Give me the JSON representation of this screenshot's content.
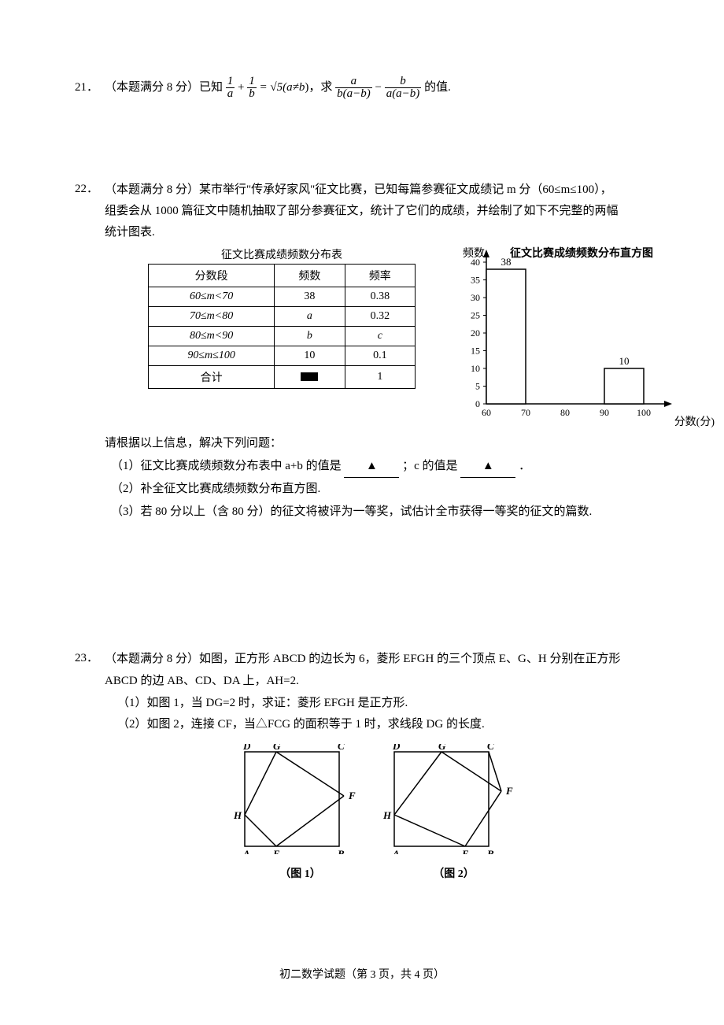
{
  "problems": {
    "p21": {
      "number": "21．",
      "points_prefix": "（本题满分 8 分）已知",
      "frac1_num": "1",
      "frac1_den": "a",
      "plus": "+",
      "frac2_num": "1",
      "frac2_den": "b",
      "eq": "= √5(",
      "cond": "a≠b",
      "after_cond": ")，求",
      "frac3_num": "a",
      "frac3_den": "b(a−b)",
      "minus": "−",
      "frac4_num": "b",
      "frac4_den": "a(a−b)",
      "tail": "的值."
    },
    "p22": {
      "number": "22．",
      "line1": "（本题满分 8 分）某市举行\"传承好家风\"征文比赛，已知每篇参赛征文成绩记 m 分（60≤m≤100），",
      "line2": "组委会从 1000 篇征文中随机抽取了部分参赛征文，统计了它们的成绩，并绘制了如下不完整的两幅",
      "line3": "统计图表.",
      "table_title": "征文比赛成绩频数分布表",
      "chart_title": "征文比赛成绩频数分布直方图",
      "yaxis_label": "频数",
      "xaxis_label": "分数(分)",
      "columns": [
        "分数段",
        "频数",
        "频率"
      ],
      "rows": [
        [
          "60≤m<70",
          "38",
          "0.38"
        ],
        [
          "70≤m<80",
          "a",
          "0.32"
        ],
        [
          "80≤m<90",
          "b",
          "c"
        ],
        [
          "90≤m≤100",
          "10",
          "0.1"
        ],
        [
          "合计",
          "BLACKBOX",
          "1"
        ]
      ],
      "chart": {
        "type": "histogram",
        "x_ticks": [
          60,
          70,
          80,
          90,
          100
        ],
        "y_ticks": [
          0,
          5,
          10,
          15,
          20,
          25,
          30,
          35,
          40
        ],
        "ylim": [
          0,
          40
        ],
        "bars": [
          {
            "x_from": 60,
            "x_to": 70,
            "value": 38,
            "label": "38"
          },
          {
            "x_from": 90,
            "x_to": 100,
            "value": 10,
            "label": "10"
          }
        ],
        "bar_fill": "#ffffff",
        "bar_stroke": "#000000",
        "axis_color": "#000000",
        "background": "#ffffff",
        "fontsize": 12
      },
      "q_intro": "请根据以上信息，解决下列问题：",
      "q1_a": "（1）征文比赛成绩频数分布表中 a+b 的值是",
      "q1_b": "；c 的值是",
      "q1_c": "．",
      "q2": "（2）补全征文比赛成绩频数分布直方图.",
      "q3": "（3）若 80 分以上（含 80 分）的征文将被评为一等奖，试估计全市获得一等奖的征文的篇数.",
      "blank_mark": "▲"
    },
    "p23": {
      "number": "23．",
      "line1": "（本题满分 8 分）如图，正方形 ABCD 的边长为 6，菱形 EFGH 的三个顶点 E、G、H 分别在正方形",
      "line2": "ABCD 的边 AB、CD、DA 上，AH=2.",
      "q1": "（1）如图 1，当 DG=2 时，求证：菱形 EFGH 是正方形.",
      "q2": "（2）如图 2，连接 CF，当△FCG 的面积等于 1 时，求线段 DG 的长度.",
      "fig1_caption": "（图 1）",
      "fig2_caption": "（图 2）",
      "labels": {
        "D": "D",
        "G": "G",
        "C": "C",
        "F": "F",
        "H": "H",
        "A": "A",
        "E": "E",
        "B": "B"
      },
      "fig": {
        "square_size": 120,
        "stroke": "#000000",
        "fig1": {
          "AH": 40,
          "DG": 40,
          "F": [
            140,
            66
          ]
        },
        "fig2": {
          "AH": 40,
          "DG": 60,
          "F": [
            150,
            60
          ],
          "E_x": 90
        }
      }
    }
  },
  "footer": "初二数学试题（第 3 页，共 4 页）"
}
